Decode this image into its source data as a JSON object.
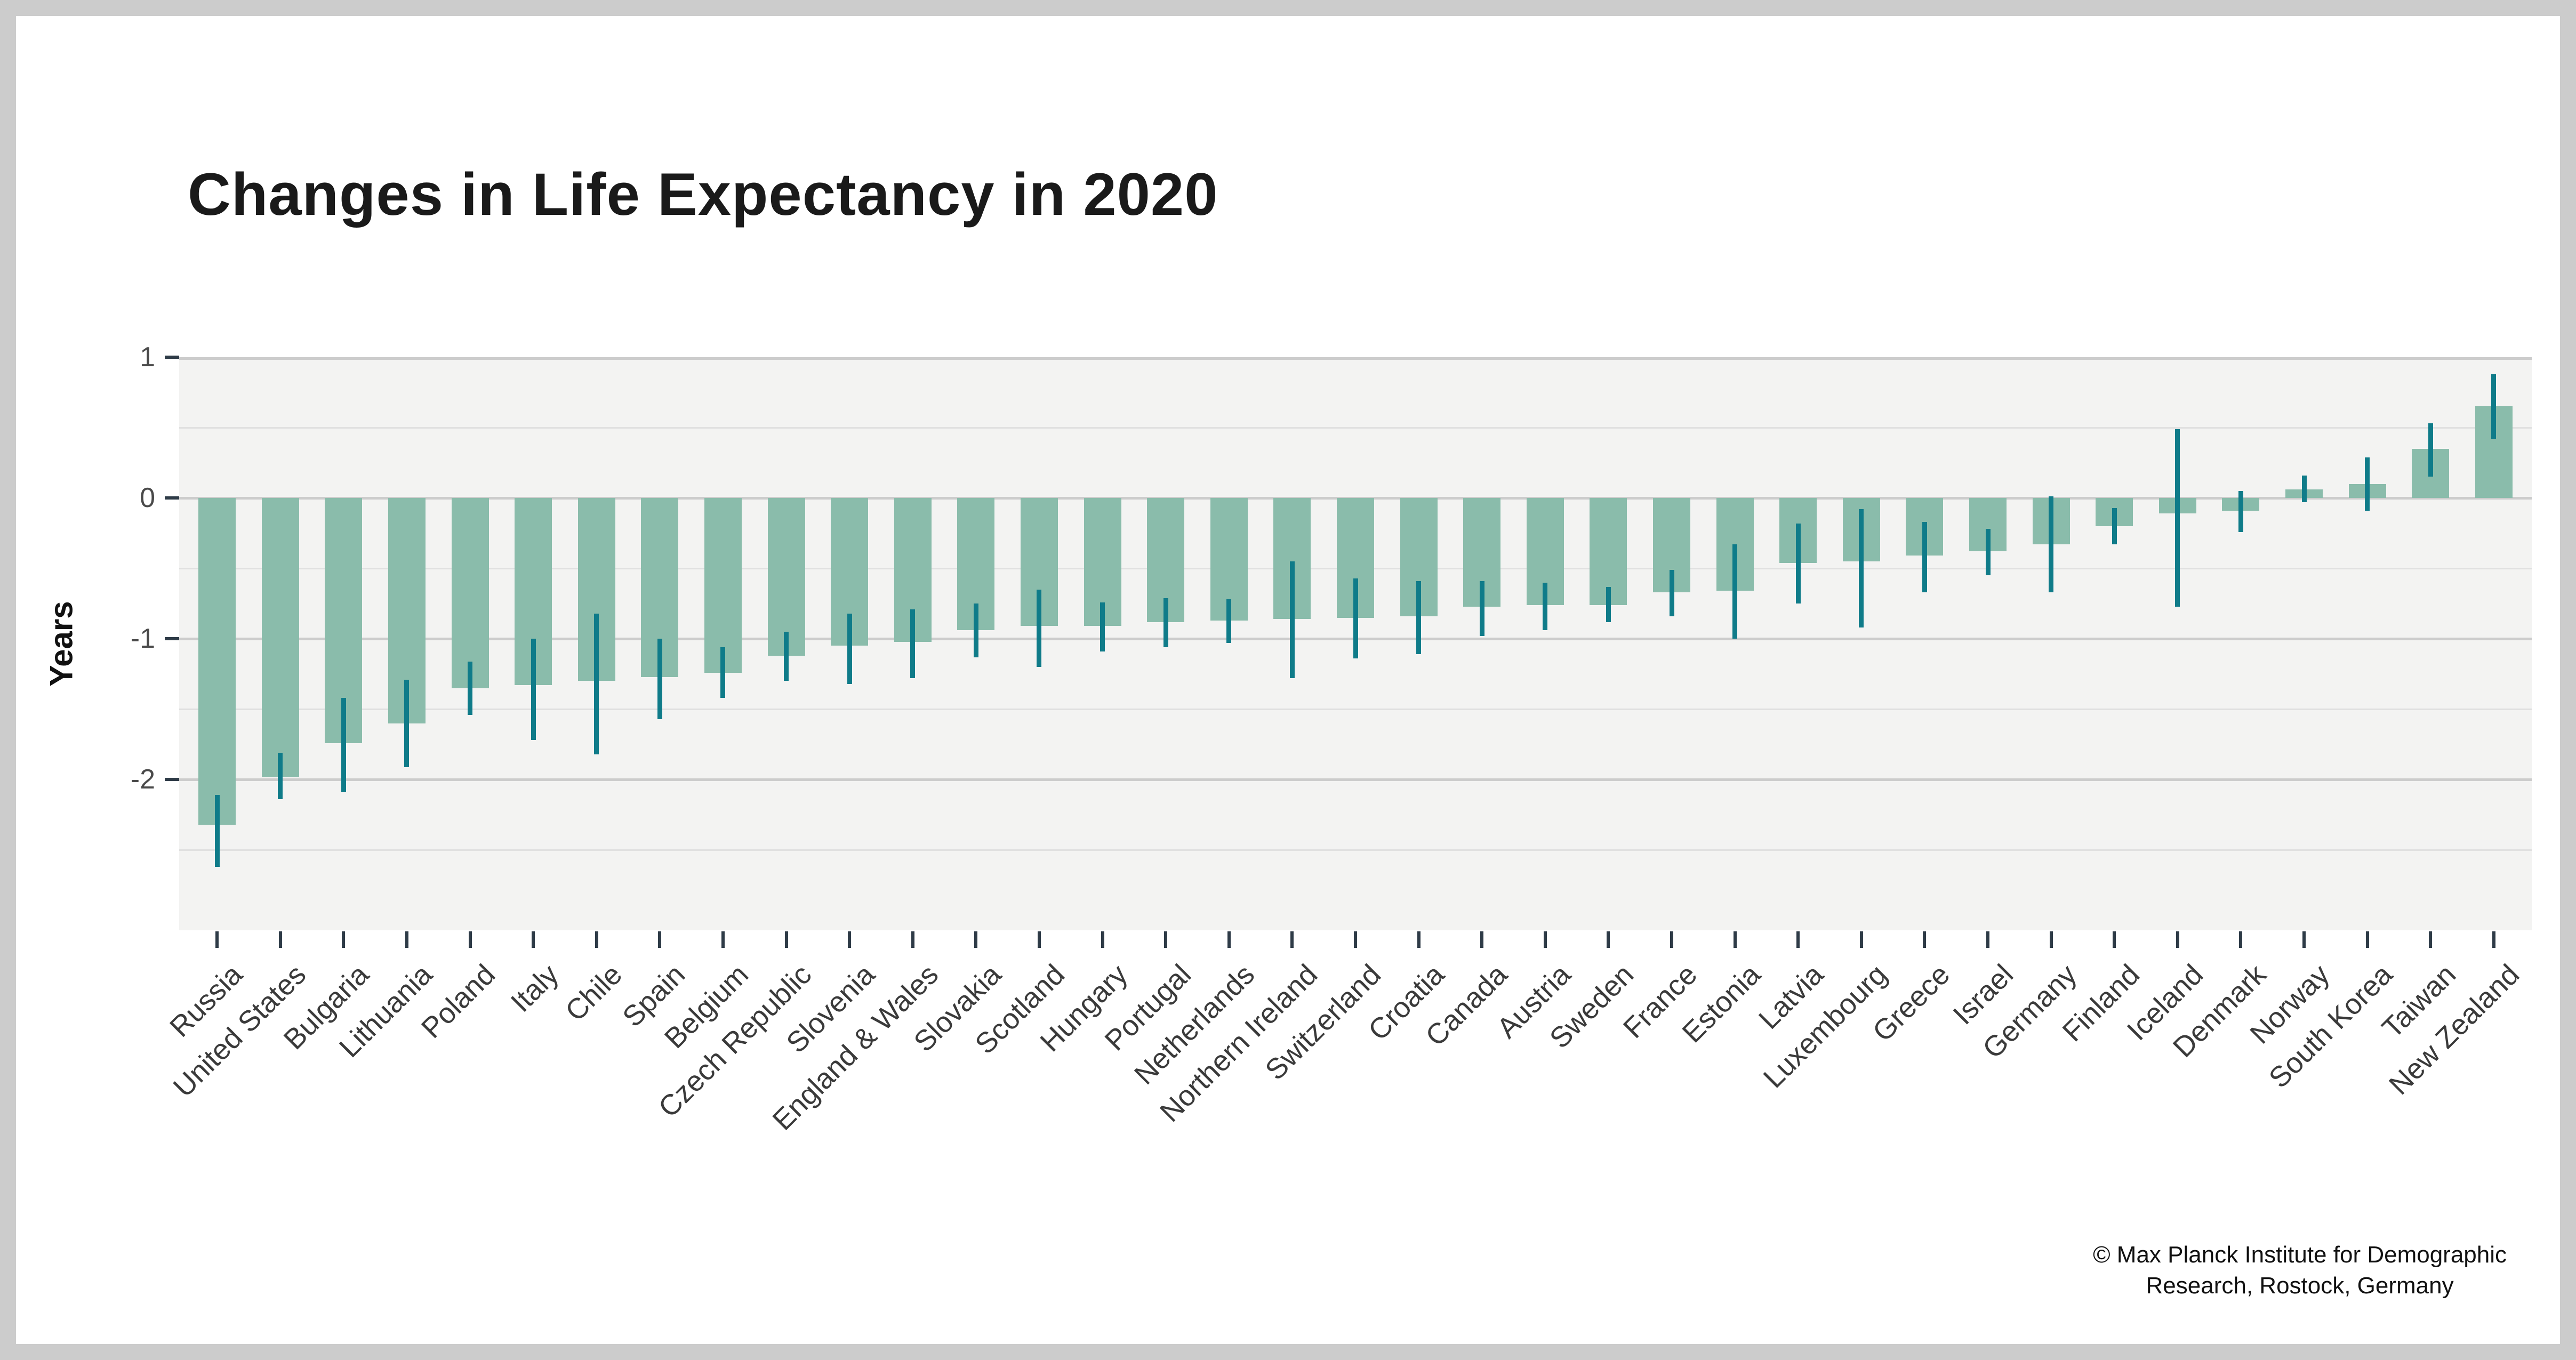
{
  "chart_data": {
    "type": "bar",
    "title": "Changes in Life Expectancy in 2020",
    "ylabel": "Years",
    "xlabel": "",
    "legend_position": "none",
    "grid": "on",
    "ylim": [
      -3.07,
      1.0
    ],
    "yticks": [
      1,
      0,
      -1,
      -2
    ],
    "minor_gridlines": [
      0.5,
      -0.5,
      -1.5,
      -2.5
    ],
    "categories": [
      "Russia",
      "United States",
      "Bulgaria",
      "Lithuania",
      "Poland",
      "Italy",
      "Chile",
      "Spain",
      "Belgium",
      "Czech Republic",
      "Slovenia",
      "England & Wales",
      "Slovakia",
      "Scotland",
      "Hungary",
      "Portugal",
      "Netherlands",
      "Northern Ireland",
      "Switzerland",
      "Croatia",
      "Canada",
      "Austria",
      "Sweden",
      "France",
      "Estonia",
      "Latvia",
      "Luxembourg",
      "Greece",
      "Israel",
      "Germany",
      "Finland",
      "Iceland",
      "Denmark",
      "Norway",
      "South Korea",
      "Taiwan",
      "New Zealand"
    ],
    "values": [
      -2.32,
      -1.98,
      -1.74,
      -1.6,
      -1.35,
      -1.33,
      -1.3,
      -1.27,
      -1.24,
      -1.12,
      -1.05,
      -1.02,
      -0.94,
      -0.91,
      -0.91,
      -0.88,
      -0.87,
      -0.86,
      -0.85,
      -0.84,
      -0.77,
      -0.76,
      -0.76,
      -0.67,
      -0.66,
      -0.46,
      -0.45,
      -0.41,
      -0.38,
      -0.33,
      -0.2,
      -0.11,
      -0.09,
      0.06,
      0.1,
      0.35,
      0.65
    ],
    "error_low": [
      -2.62,
      -2.14,
      -2.09,
      -1.91,
      -1.54,
      -1.72,
      -1.82,
      -1.57,
      -1.42,
      -1.3,
      -1.32,
      -1.28,
      -1.13,
      -1.2,
      -1.09,
      -1.06,
      -1.03,
      -1.28,
      -1.14,
      -1.11,
      -0.98,
      -0.94,
      -0.88,
      -0.84,
      -1.0,
      -0.75,
      -0.92,
      -0.67,
      -0.55,
      -0.67,
      -0.33,
      -0.77,
      -0.24,
      -0.03,
      -0.09,
      0.15,
      0.42
    ],
    "error_high": [
      -2.11,
      -1.81,
      -1.42,
      -1.29,
      -1.16,
      -1.0,
      -0.82,
      -1.0,
      -1.06,
      -0.95,
      -0.82,
      -0.79,
      -0.75,
      -0.65,
      -0.74,
      -0.71,
      -0.72,
      -0.45,
      -0.57,
      -0.59,
      -0.59,
      -0.6,
      -0.63,
      -0.51,
      -0.33,
      -0.18,
      -0.08,
      -0.17,
      -0.22,
      0.01,
      -0.07,
      0.49,
      0.05,
      0.16,
      0.29,
      0.53,
      0.88
    ]
  },
  "colors": {
    "bar": "#8abcab",
    "error_bar": "#0f7b89",
    "panel_background": "#f3f3f2",
    "grid_major": "#cccccc",
    "grid_minor": "#e0e0e0",
    "tick_mark": "#2e3b47",
    "frame": "#cccccc"
  },
  "footer": {
    "copyright_line1": "© Max Planck Institute for Demographic",
    "copyright_line2": "Research, Rostock, Germany"
  }
}
